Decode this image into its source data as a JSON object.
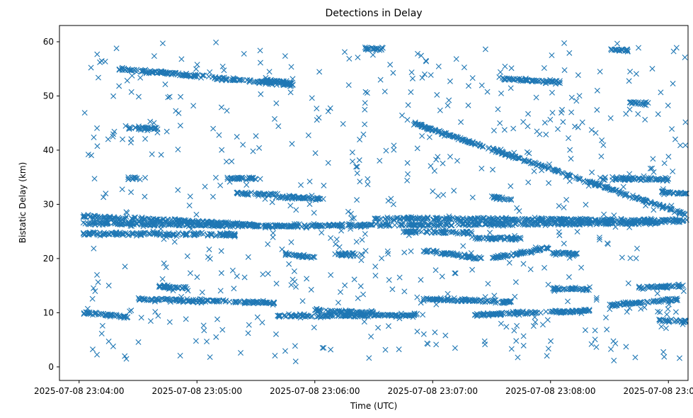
{
  "chart_data": {
    "type": "scatter",
    "title": "Detections in Delay",
    "xlabel": "Time (UTC)",
    "ylabel": "Bistatic Delay (km)",
    "x_unit": "seconds",
    "x_range": [
      "2025-07-08 23:03:50",
      "2025-07-08 23:09:10"
    ],
    "ylim": [
      -2.5,
      63
    ],
    "x_ticks": [
      {
        "label": "2025-07-08 23:04:00",
        "value": "2025-07-08 23:04:00"
      },
      {
        "label": "2025-07-08 23:05:00",
        "value": "2025-07-08 23:05:00"
      },
      {
        "label": "2025-07-08 23:06:00",
        "value": "2025-07-08 23:06:00"
      },
      {
        "label": "2025-07-08 23:07:00",
        "value": "2025-07-08 23:07:00"
      },
      {
        "label": "2025-07-08 23:08:00",
        "value": "2025-07-08 23:08:00"
      },
      {
        "label": "2025-07-08 23:09:00",
        "value": "2025-07-08 23:09:00"
      }
    ],
    "y_ticks": [
      0,
      10,
      20,
      30,
      40,
      50,
      60
    ],
    "grid": false,
    "legend": "none",
    "marker": "x",
    "color": "#1f77b4",
    "series": [
      {
        "tracks": [
          {
            "x": [
              "23:04:02",
              "23:05:30"
            ],
            "y": [
              27.8,
              26.2
            ]
          },
          {
            "x": [
              "23:04:02",
              "23:05:30"
            ],
            "y": [
              26.6,
              26.0
            ]
          },
          {
            "x": [
              "23:04:02",
              "23:05:20"
            ],
            "y": [
              24.6,
              24.4
            ]
          },
          {
            "x": [
              "23:05:30",
              "23:08:55"
            ],
            "y": [
              26.0,
              26.6
            ]
          },
          {
            "x": [
              "23:06:30",
              "23:09:10"
            ],
            "y": [
              27.4,
              27.0
            ]
          },
          {
            "x": [
              "23:04:20",
              "23:05:50"
            ],
            "y": [
              55.0,
              52.0
            ]
          },
          {
            "x": [
              "23:05:35",
              "23:05:50"
            ],
            "y": [
              53.0,
              52.2
            ]
          },
          {
            "x": [
              "23:06:25",
              "23:06:35"
            ],
            "y": [
              58.8,
              58.6
            ]
          },
          {
            "x": [
              "23:07:35",
              "23:08:05"
            ],
            "y": [
              53.2,
              52.5
            ]
          },
          {
            "x": [
              "23:06:50",
              "23:09:10"
            ],
            "y": [
              45.0,
              28.0
            ]
          },
          {
            "x": [
              "23:04:25",
              "23:04:40"
            ],
            "y": [
              44.0,
              44.0
            ]
          },
          {
            "x": [
              "23:04:25",
              "23:04:30"
            ],
            "y": [
              34.8,
              34.8
            ]
          },
          {
            "x": [
              "23:05:15",
              "23:05:30"
            ],
            "y": [
              34.8,
              34.8
            ]
          },
          {
            "x": [
              "23:05:20",
              "23:05:40"
            ],
            "y": [
              32.0,
              31.8
            ]
          },
          {
            "x": [
              "23:05:40",
              "23:06:05"
            ],
            "y": [
              31.4,
              31.0
            ]
          },
          {
            "x": [
              "23:07:30",
              "23:07:40"
            ],
            "y": [
              31.3,
              31.0
            ]
          },
          {
            "x": [
              "23:08:25",
              "23:09:00"
            ],
            "y": [
              34.8,
              34.6
            ]
          },
          {
            "x": [
              "23:08:55",
              "23:09:10"
            ],
            "y": [
              32.2,
              32.0
            ]
          },
          {
            "x": [
              "23:05:45",
              "23:06:00"
            ],
            "y": [
              20.8,
              20.2
            ]
          },
          {
            "x": [
              "23:06:10",
              "23:06:25"
            ],
            "y": [
              20.8,
              20.6
            ]
          },
          {
            "x": [
              "23:06:55",
              "23:07:25"
            ],
            "y": [
              21.5,
              20.0
            ]
          },
          {
            "x": [
              "23:07:30",
              "23:08:00"
            ],
            "y": [
              20.0,
              22.0
            ]
          },
          {
            "x": [
              "23:08:00",
              "23:08:15"
            ],
            "y": [
              21.0,
              20.8
            ]
          },
          {
            "x": [
              "23:07:20",
              "23:07:45"
            ],
            "y": [
              23.8,
              23.6
            ]
          },
          {
            "x": [
              "23:06:45",
              "23:07:20"
            ],
            "y": [
              25.0,
              24.8
            ]
          },
          {
            "x": [
              "23:04:30",
              "23:05:40"
            ],
            "y": [
              12.5,
              11.8
            ]
          },
          {
            "x": [
              "23:04:40",
              "23:04:55"
            ],
            "y": [
              14.8,
              14.6
            ]
          },
          {
            "x": [
              "23:04:02",
              "23:04:25"
            ],
            "y": [
              10.0,
              9.2
            ]
          },
          {
            "x": [
              "23:05:40",
              "23:06:55"
            ],
            "y": [
              9.4,
              9.6
            ]
          },
          {
            "x": [
              "23:06:00",
              "23:06:30"
            ],
            "y": [
              10.4,
              10.0
            ]
          },
          {
            "x": [
              "23:06:55",
              "23:07:40"
            ],
            "y": [
              12.5,
              12.0
            ]
          },
          {
            "x": [
              "23:07:20",
              "23:08:20"
            ],
            "y": [
              9.6,
              10.4
            ]
          },
          {
            "x": [
              "23:08:00",
              "23:08:20"
            ],
            "y": [
              14.4,
              14.4
            ]
          },
          {
            "x": [
              "23:08:30",
              "23:09:05"
            ],
            "y": [
              11.4,
              12.5
            ]
          },
          {
            "x": [
              "23:08:45",
              "23:09:10"
            ],
            "y": [
              14.6,
              15.0
            ]
          },
          {
            "x": [
              "23:08:55",
              "23:09:10"
            ],
            "y": [
              8.6,
              8.4
            ]
          },
          {
            "x": [
              "23:08:30",
              "23:08:40"
            ],
            "y": [
              58.6,
              58.4
            ]
          },
          {
            "x": [
              "23:08:40",
              "23:08:50"
            ],
            "y": [
              48.8,
              48.6
            ]
          }
        ],
        "scatter_density_per_track_second": 2.2,
        "noise_points": 620
      }
    ]
  }
}
